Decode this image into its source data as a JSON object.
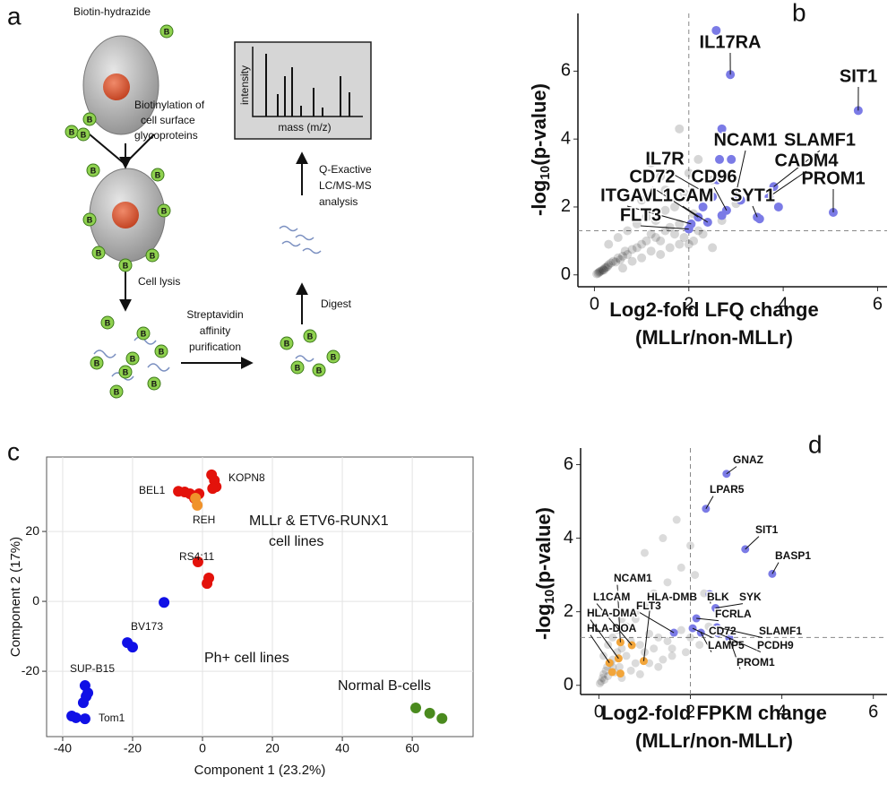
{
  "panel_letters": [
    "a",
    "b",
    "c",
    "d"
  ],
  "diagram": {
    "reagent": "Biotin-hydrazide",
    "bead_label": "B",
    "step_biotinylation": [
      "Biotinylation of",
      "cell surface",
      "glycoproteins"
    ],
    "step_lysis": "Cell lysis",
    "step_purification": [
      "Streptavidin",
      "affinity",
      "purification"
    ],
    "step_digest": "Digest",
    "step_ms": [
      "Q-Exactive",
      "LC/MS-MS",
      "analysis"
    ],
    "spectrum_ylabel": "intensity",
    "spectrum_xlabel": "mass (m/z)"
  },
  "chart_data": [
    {
      "type": "scatter",
      "xlabel": [
        "Log2-fold LFQ change",
        "(MLLr/non-MLLr)"
      ],
      "ylabel": {
        "main": "-log",
        "sub": "10",
        "rest": "(p-value)"
      },
      "xlim": [
        -0.35,
        6.2
      ],
      "ylim": [
        -0.35,
        7.7
      ],
      "xticks": [
        0,
        2,
        4,
        6
      ],
      "yticks": [
        0,
        2,
        4,
        6
      ],
      "grid": false,
      "thresholds": {
        "x": 2,
        "y": 1.3
      },
      "series": [
        {
          "color": "rgba(0,0,0,0.16)",
          "x": [
            0.05,
            0.08,
            0.1,
            0.12,
            0.15,
            0.18,
            0.2,
            0.22,
            0.25,
            0.28,
            0.3,
            0.35,
            0.4,
            0.45,
            0.5,
            0.55,
            0.6,
            0.65,
            0.7,
            0.8,
            0.9,
            1.0,
            1.1,
            1.2,
            1.3,
            1.4,
            1.5,
            1.6,
            1.7,
            1.8,
            1.9,
            2.0,
            2.1,
            2.2,
            0.3,
            0.5,
            0.7,
            0.9,
            1.1,
            1.3,
            1.5,
            1.7,
            1.9,
            2.1,
            0.6,
            0.8,
            1.0,
            1.2,
            1.4,
            1.6,
            1.8,
            2.3,
            2.5,
            2.7,
            3.0,
            1.0,
            1.5,
            2.0,
            2.5,
            1.2,
            1.4,
            1.8,
            2.2
          ],
          "values": [
            0.03,
            0.05,
            0.08,
            0.1,
            0.12,
            0.15,
            0.14,
            0.2,
            0.22,
            0.25,
            0.3,
            0.35,
            0.4,
            0.38,
            0.5,
            0.45,
            0.55,
            0.7,
            0.6,
            0.75,
            0.8,
            0.9,
            1.0,
            1.2,
            1.1,
            1.0,
            1.3,
            1.4,
            1.2,
            1.5,
            1.1,
            0.9,
            1.0,
            1.3,
            0.9,
            1.1,
            1.3,
            1.5,
            1.7,
            1.6,
            1.9,
            2.0,
            2.4,
            1.8,
            0.2,
            0.4,
            0.5,
            0.7,
            0.6,
            0.8,
            0.9,
            1.2,
            0.8,
            1.6,
            2.1,
            2.2,
            2.5,
            3.0,
            2.8,
            3.3,
            2.9,
            4.3,
            3.4
          ]
        },
        {
          "color": "#7b7be6",
          "x": [
            2.58,
            2.88,
            5.59,
            5.06,
            2.7,
            3.0,
            3.8,
            2.5,
            3.7,
            2.2,
            2.8,
            2.05,
            2.4,
            3.45,
            2.0,
            2.65,
            2.9,
            2.6,
            3.1,
            3.9,
            3.5,
            2.3,
            2.7
          ],
          "values": [
            7.2,
            5.9,
            4.84,
            1.84,
            4.3,
            2.4,
            2.6,
            2.3,
            2.3,
            1.7,
            1.9,
            1.5,
            1.55,
            1.7,
            1.35,
            3.4,
            3.4,
            2.8,
            2.2,
            2.0,
            1.65,
            2.0,
            1.75
          ],
          "point_labels": [
            null,
            "IL17RA",
            "SIT1",
            "PROM1",
            null,
            "NCAM1",
            "SLAMF1",
            "IL7R",
            "CADM4",
            "CD72",
            "CD96",
            "ITGAV",
            "L1CAM",
            "SYT1",
            "FLT3",
            null,
            null,
            null,
            null,
            null,
            null,
            null,
            null
          ]
        }
      ]
    },
    {
      "type": "scatter",
      "xlabel": [
        "Component 1 (23.2%)"
      ],
      "ylabel": {
        "main": "Component 2 (17%)"
      },
      "xlim": [
        -44.6,
        77.4
      ],
      "ylim": [
        -38.7,
        41.3
      ],
      "xticks": [
        -40,
        -20,
        0,
        20,
        40,
        60
      ],
      "yticks": [
        -20,
        0,
        20
      ],
      "grid": true,
      "annotations": [
        "BEL1",
        "KOPN8",
        "REH",
        "MLLr & ETV6-RUNX1",
        "cell lines",
        "RS4:11",
        "BV173",
        "Ph+ cell lines",
        "SUP-B15",
        "Tom1",
        "Normal B-cells"
      ],
      "series": [
        {
          "color": "#e3120b",
          "x": [
            -6.9,
            -5.1,
            -3.6,
            -2.3,
            -1.0,
            2.6,
            3.4,
            3.9,
            2.9,
            -1.3,
            1.8,
            1.3
          ],
          "values": [
            31.5,
            31.3,
            30.8,
            29.5,
            30.8,
            36.2,
            34.6,
            32.8,
            32.3,
            11.3,
            6.7,
            5.1
          ]
        },
        {
          "color": "#f0922b",
          "x": [
            -2.0,
            -1.5
          ],
          "values": [
            29.5,
            27.5
          ]
        },
        {
          "color": "#1010e6",
          "x": [
            -11,
            -21.5,
            -20,
            -33.6,
            -32.8,
            -33.3,
            -34.1,
            -37.4,
            -36.2,
            -33.6
          ],
          "values": [
            -0.3,
            -11.8,
            -13.1,
            -24.1,
            -26.2,
            -27.2,
            -29,
            -32.8,
            -33.3,
            -33.6
          ]
        },
        {
          "color": "#4a8a1e",
          "x": [
            61,
            65,
            68.5
          ],
          "values": [
            -30.5,
            -32,
            -33.5
          ]
        }
      ]
    },
    {
      "type": "scatter",
      "xlabel": [
        "Log2-fold FPKM change",
        "(MLLr/non-MLLr)"
      ],
      "ylabel": {
        "main": "-log",
        "sub": "10",
        "rest": "(p-value)"
      },
      "xlim": [
        -0.4,
        6.3
      ],
      "ylim": [
        -0.25,
        6.45
      ],
      "xticks": [
        0,
        2,
        4,
        6
      ],
      "yticks": [
        0,
        2,
        4,
        6
      ],
      "grid": false,
      "thresholds": {
        "x": 2,
        "y": 1.3
      },
      "series": [
        {
          "color": "rgba(0,0,0,0.14)",
          "x": [
            0.02,
            0.05,
            0.08,
            0.1,
            0.12,
            0.15,
            0.18,
            0.2,
            0.25,
            0.3,
            0.35,
            0.4,
            0.45,
            0.5,
            0.6,
            0.7,
            0.8,
            0.9,
            1.0,
            1.1,
            1.2,
            1.3,
            1.4,
            1.5,
            1.6,
            1.8,
            2.0,
            2.2,
            2.4,
            0.1,
            0.2,
            0.3,
            0.4,
            0.5,
            0.6,
            0.8,
            1.0,
            1.2,
            1.5,
            1.8,
            2.1,
            0.3,
            0.5,
            0.7,
            0.9,
            1.1,
            1.3,
            1.6,
            1.9,
            2.3,
            2.6,
            1.0,
            1.4,
            1.7,
            2.0,
            0.8,
            1.2
          ],
          "values": [
            0.05,
            0.1,
            0.2,
            0.3,
            0.15,
            0.4,
            0.5,
            0.25,
            0.6,
            0.7,
            0.35,
            0.9,
            0.5,
            1.0,
            0.8,
            1.2,
            0.6,
            1.1,
            0.9,
            1.4,
            1.0,
            1.3,
            0.7,
            1.2,
            1.0,
            1.5,
            1.3,
            1.1,
            1.6,
            0.8,
            1.1,
            1.3,
            1.5,
            1.8,
            1.6,
            2.0,
            2.2,
            2.5,
            2.8,
            3.2,
            3.0,
            0.5,
            0.2,
            0.4,
            0.3,
            0.6,
            0.5,
            0.8,
            0.9,
            2.5,
            2.0,
            3.6,
            4.0,
            4.5,
            3.8,
            1.8,
            2.4
          ]
        },
        {
          "color": "#f2a53a",
          "x": [
            0.23,
            0.47,
            0.72,
            0.43,
            0.98,
            0.29,
            0.47
          ],
          "values": [
            0.61,
            1.17,
            1.09,
            0.73,
            0.66,
            0.36,
            0.32
          ],
          "point_labels": [
            "HLA-DOA",
            "NCAM1",
            "L1CAM",
            "HLA-DMA",
            "HLA-DMB",
            null,
            null
          ]
        },
        {
          "color": "#7b7be6",
          "x": [
            2.79,
            2.34,
            3.2,
            3.79,
            2.42,
            2.55,
            2.13,
            2.05,
            2.58,
            2.23,
            2.6,
            2.85,
            1.64
          ],
          "values": [
            5.75,
            4.8,
            3.7,
            3.03,
            2.48,
            2.1,
            1.82,
            1.55,
            1.58,
            1.43,
            1.42,
            1.29,
            1.43
          ],
          "point_labels": [
            "GNAZ",
            "LPAR5",
            "SIT1",
            "BASP1",
            "BLK",
            "SYK",
            "FCRLA",
            "CD72",
            "SLAMF1",
            "LAMP5",
            "PCDH9",
            "PROM1",
            "FLT3"
          ]
        }
      ]
    }
  ]
}
